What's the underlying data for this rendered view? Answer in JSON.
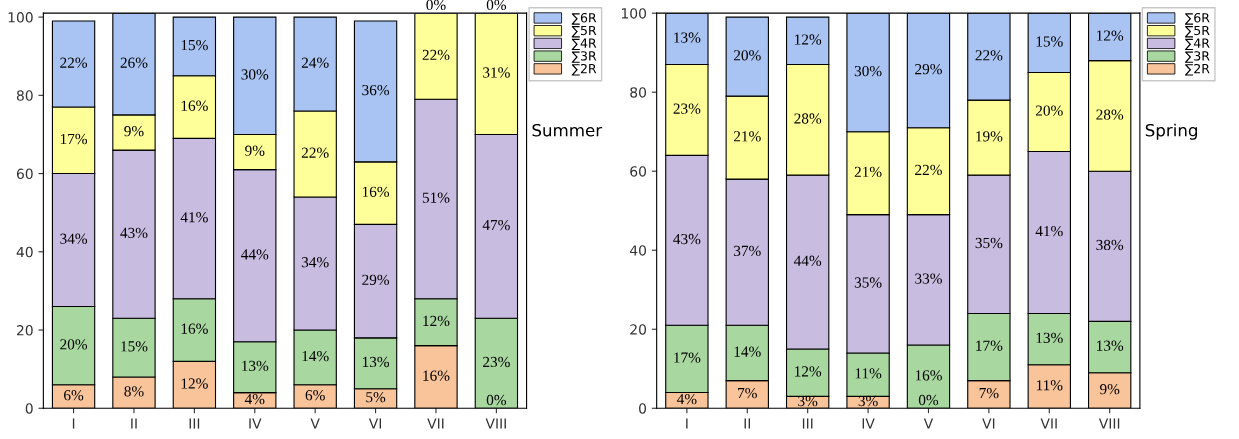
{
  "chart_data": [
    {
      "type": "bar",
      "stacked": true,
      "title": "Summer",
      "categories": [
        "I",
        "II",
        "III",
        "IV",
        "V",
        "VI",
        "VII",
        "VIII"
      ],
      "ylim": [
        0,
        101
      ],
      "yticks": [
        0,
        20,
        40,
        60,
        80,
        100
      ],
      "grid": false,
      "legend": "top right",
      "series": [
        {
          "name": "∑2R",
          "color": "#f9c49a",
          "values": [
            6,
            8,
            12,
            4,
            6,
            5,
            16,
            0
          ],
          "value_labels": [
            "6%",
            "8%",
            "12%",
            "4%",
            "6%",
            "5%",
            "16%",
            "0%"
          ]
        },
        {
          "name": "∑3R",
          "color": "#a8d8a0",
          "values": [
            20,
            15,
            16,
            13,
            14,
            13,
            12,
            23
          ],
          "value_labels": [
            "20%",
            "15%",
            "16%",
            "13%",
            "14%",
            "13%",
            "12%",
            "23%"
          ]
        },
        {
          "name": "∑4R",
          "color": "#c8bce0",
          "values": [
            34,
            43,
            41,
            44,
            34,
            29,
            51,
            47
          ],
          "value_labels": [
            "34%",
            "43%",
            "41%",
            "44%",
            "34%",
            "29%",
            "51%",
            "47%"
          ]
        },
        {
          "name": "∑5R",
          "color": "#ffff99",
          "values": [
            17,
            9,
            16,
            9,
            22,
            16,
            22,
            31
          ],
          "value_labels": [
            "17%",
            "9%",
            "16%",
            "9%",
            "22%",
            "16%",
            "22%",
            "31%"
          ]
        },
        {
          "name": "∑6R",
          "color": "#a9c4f2",
          "values": [
            22,
            26,
            15,
            30,
            24,
            36,
            0,
            0
          ],
          "value_labels": [
            "22%",
            "26%",
            "15%",
            "30%",
            "24%",
            "36%",
            "0%",
            "0%"
          ]
        }
      ]
    },
    {
      "type": "bar",
      "stacked": true,
      "title": "Spring",
      "categories": [
        "I",
        "II",
        "III",
        "IV",
        "V",
        "VI",
        "VII",
        "VIII"
      ],
      "ylim": [
        0,
        100
      ],
      "yticks": [
        0,
        20,
        40,
        60,
        80,
        100
      ],
      "grid": false,
      "legend": "top right",
      "series": [
        {
          "name": "∑2R",
          "color": "#f9c49a",
          "values": [
            4,
            7,
            3,
            3,
            0,
            7,
            11,
            9
          ],
          "value_labels": [
            "4%",
            "7%",
            "3%",
            "3%",
            "0%",
            "7%",
            "11%",
            "9%"
          ]
        },
        {
          "name": "∑3R",
          "color": "#a8d8a0",
          "values": [
            17,
            14,
            12,
            11,
            16,
            17,
            13,
            13
          ],
          "value_labels": [
            "17%",
            "14%",
            "12%",
            "11%",
            "16%",
            "17%",
            "13%",
            "13%"
          ]
        },
        {
          "name": "∑4R",
          "color": "#c8bce0",
          "values": [
            43,
            37,
            44,
            35,
            33,
            35,
            41,
            38
          ],
          "value_labels": [
            "43%",
            "37%",
            "44%",
            "35%",
            "33%",
            "35%",
            "41%",
            "38%"
          ]
        },
        {
          "name": "∑5R",
          "color": "#ffff99",
          "values": [
            23,
            21,
            28,
            21,
            22,
            19,
            20,
            28
          ],
          "value_labels": [
            "23%",
            "21%",
            "28%",
            "21%",
            "22%",
            "19%",
            "20%",
            "28%"
          ]
        },
        {
          "name": "∑6R",
          "color": "#a9c4f2",
          "values": [
            13,
            20,
            12,
            30,
            29,
            22,
            15,
            12
          ],
          "value_labels": [
            "13%",
            "20%",
            "12%",
            "30%",
            "29%",
            "22%",
            "15%",
            "12%"
          ]
        }
      ]
    }
  ]
}
